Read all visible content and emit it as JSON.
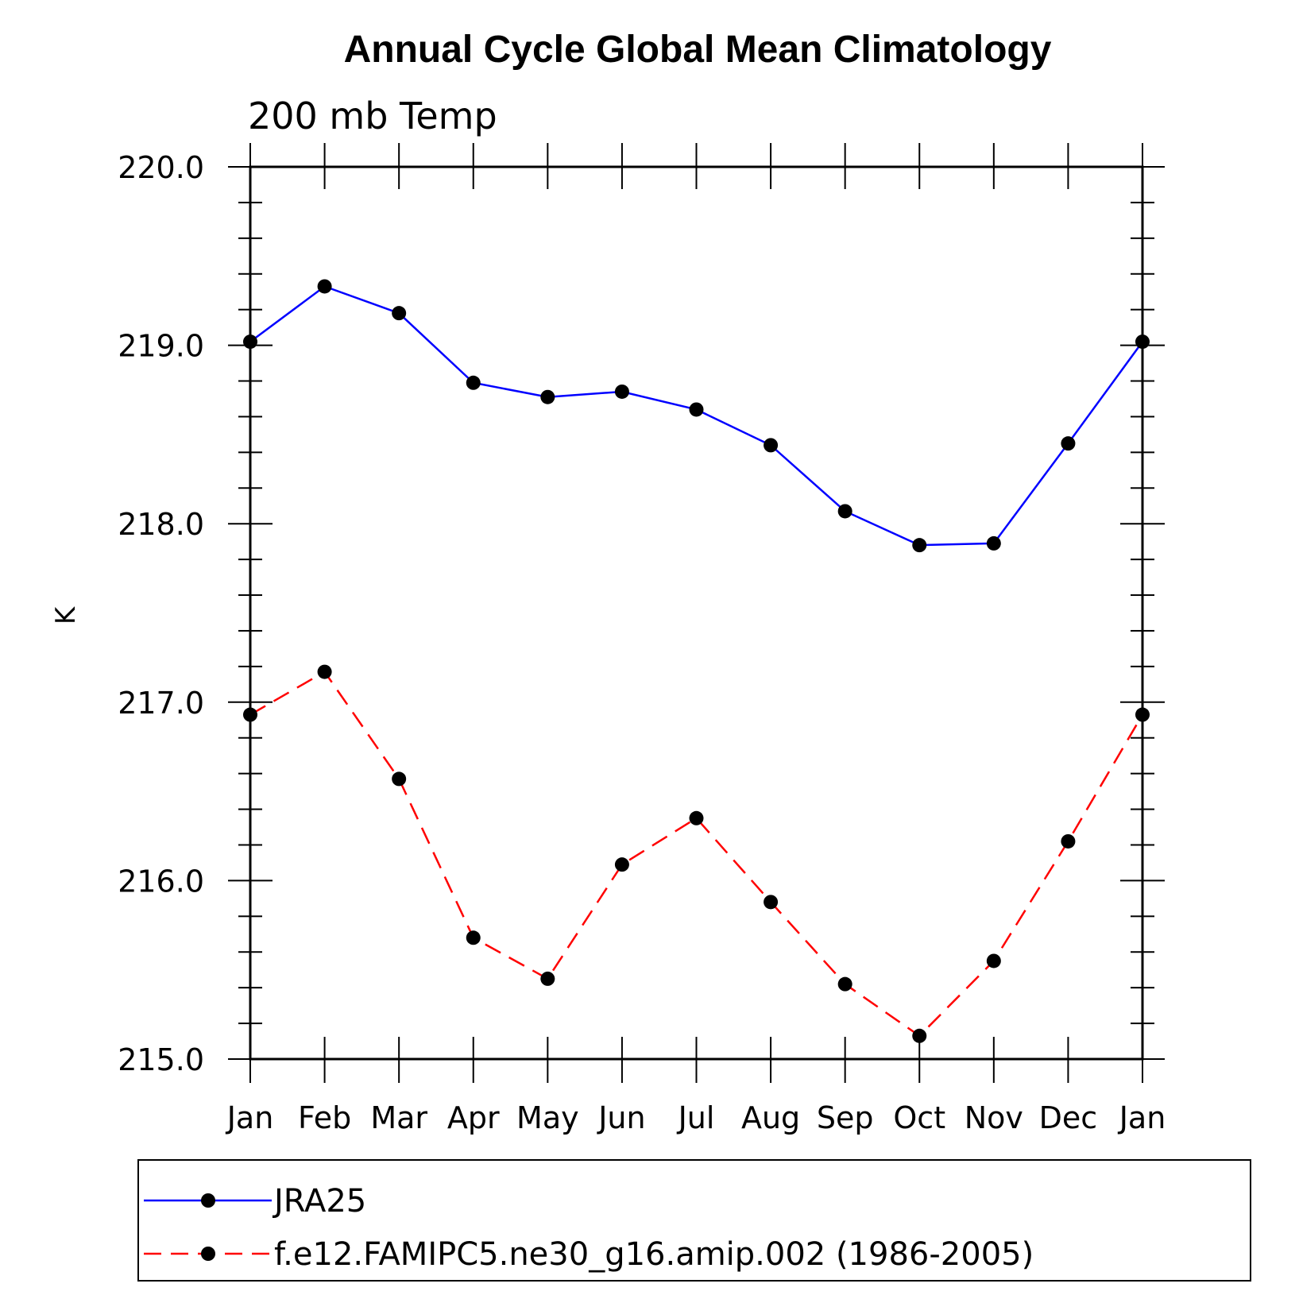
{
  "chart_data": {
    "type": "line",
    "title": "Annual Cycle Global Mean Climatology",
    "subtitle": "200 mb Temp",
    "xlabel": "",
    "ylabel": "K",
    "categories": [
      "Jan",
      "Feb",
      "Mar",
      "Apr",
      "May",
      "Jun",
      "Jul",
      "Aug",
      "Sep",
      "Oct",
      "Nov",
      "Dec",
      "Jan"
    ],
    "ylim": [
      215.0,
      220.0
    ],
    "y_ticks": [
      "215.0",
      "216.0",
      "217.0",
      "218.0",
      "219.0",
      "220.0"
    ],
    "y_minor_step": 0.2,
    "grid": false,
    "legend_position": "bottom",
    "series": [
      {
        "name": "JRA25",
        "color": "#0000ff",
        "line_style": "solid",
        "marker": "filled-circle",
        "values": [
          219.02,
          219.33,
          219.18,
          218.79,
          218.71,
          218.74,
          218.64,
          218.44,
          218.07,
          217.88,
          217.89,
          218.45,
          219.02
        ]
      },
      {
        "name": "f.e12.FAMIPC5.ne30_g16.amip.002 (1986-2005)",
        "color": "#ff0000",
        "line_style": "dashed",
        "marker": "filled-circle",
        "values": [
          216.93,
          217.17,
          216.57,
          215.68,
          215.45,
          216.09,
          216.35,
          215.88,
          215.42,
          215.13,
          215.55,
          216.22,
          216.93
        ]
      }
    ]
  }
}
